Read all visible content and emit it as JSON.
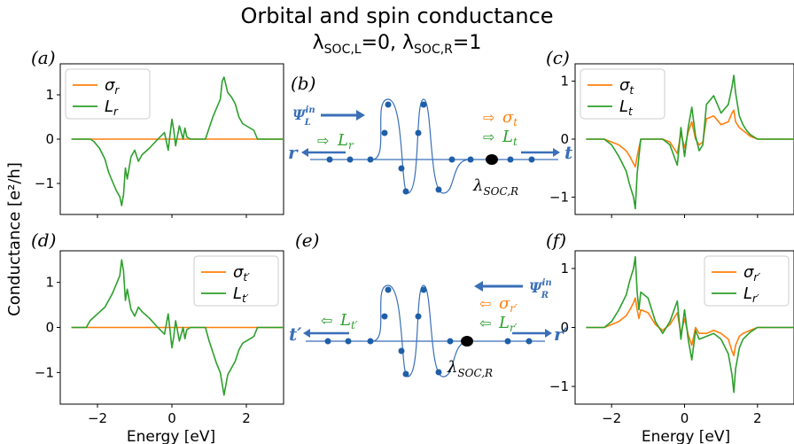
{
  "figure": {
    "title_line1": "Orbital and spin conductance",
    "title_line2": "λSOC,L=0, λSOC,R=1",
    "ylabel": "Conductance [e²/h]",
    "xlabel": "Energy [eV]"
  },
  "colors": {
    "sigma": "#ff7f0e",
    "L": "#2ca02c",
    "blue": "#3a6fb8",
    "green_text": "#2ca02c",
    "orange_text": "#ff7f0e"
  },
  "chart_data": [
    {
      "panel": "(a)",
      "type": "line",
      "xlim": [
        -3,
        3
      ],
      "ylim": [
        -1.7,
        1.7
      ],
      "yticks": [
        -1,
        0,
        1
      ],
      "xticks": [
        -2,
        0,
        2
      ],
      "show_xticklabels": false,
      "legend_position": "upper-left",
      "series": [
        {
          "name": "σr",
          "color_key": "sigma",
          "x": [
            -2.7,
            3.0
          ],
          "y": [
            0,
            0
          ]
        },
        {
          "name": "Lr",
          "color_key": "L",
          "x": [
            -2.7,
            -2.2,
            -2.1,
            -1.95,
            -1.8,
            -1.7,
            -1.6,
            -1.5,
            -1.4,
            -1.35,
            -1.3,
            -1.25,
            -1.2,
            -1.1,
            -1.0,
            -0.9,
            -0.8,
            -0.6,
            -0.4,
            -0.2,
            -0.1,
            0.0,
            0.05,
            0.1,
            0.2,
            0.3,
            0.35,
            0.4,
            0.5,
            0.6,
            0.7,
            0.8,
            0.9,
            1.0,
            1.1,
            1.2,
            1.3,
            1.35,
            1.4,
            1.5,
            1.6,
            1.7,
            1.8,
            1.9,
            2.0,
            2.2,
            2.3,
            2.6,
            3.0
          ],
          "y": [
            0,
            0,
            -0.05,
            -0.2,
            -0.45,
            -0.75,
            -0.95,
            -1.15,
            -1.3,
            -1.5,
            -1.25,
            -0.65,
            -0.9,
            -0.4,
            -0.25,
            -0.5,
            -0.35,
            -0.2,
            -0.02,
            0.15,
            -0.25,
            0.45,
            0.2,
            -0.15,
            0.3,
            0.0,
            0.25,
            0.05,
            0.0,
            0.0,
            0.0,
            0.0,
            0.0,
            0.25,
            0.5,
            0.7,
            0.9,
            1.3,
            1.4,
            1.05,
            0.95,
            0.8,
            0.5,
            0.35,
            0.3,
            0.2,
            0.0,
            0,
            0
          ]
        }
      ]
    },
    {
      "panel": "(c)",
      "type": "line",
      "xlim": [
        -3,
        3
      ],
      "ylim": [
        -1.3,
        1.3
      ],
      "yticks": [
        -1,
        0,
        1
      ],
      "xticks": [
        -2,
        0,
        2
      ],
      "show_xticklabels": false,
      "legend_position": "upper-left",
      "series": [
        {
          "name": "σt",
          "color_key": "sigma",
          "x": [
            -2.7,
            -2.2,
            -2.0,
            -1.8,
            -1.6,
            -1.5,
            -1.4,
            -1.35,
            -1.3,
            -1.25,
            -1.2,
            -1.0,
            -0.8,
            -0.6,
            -0.4,
            -0.2,
            -0.1,
            0.0,
            0.1,
            0.2,
            0.3,
            0.4,
            0.5,
            0.6,
            0.8,
            1.0,
            1.2,
            1.3,
            1.35,
            1.4,
            1.5,
            1.6,
            1.7,
            1.8,
            2.0,
            2.2,
            3.0
          ],
          "y": [
            0,
            0,
            -0.05,
            -0.1,
            -0.2,
            -0.3,
            -0.42,
            -0.48,
            -0.3,
            -0.15,
            0,
            0,
            0,
            0,
            -0.05,
            -0.25,
            0.1,
            -0.15,
            0.12,
            0.3,
            0.0,
            -0.1,
            -0.05,
            0.35,
            0.4,
            0.25,
            0.3,
            0.45,
            0.5,
            0.3,
            0.2,
            0.15,
            0.1,
            0.05,
            0.0,
            0,
            0
          ]
        },
        {
          "name": "Lt",
          "color_key": "L",
          "x": [
            -2.7,
            -2.2,
            -2.0,
            -1.8,
            -1.6,
            -1.5,
            -1.4,
            -1.35,
            -1.3,
            -1.25,
            -1.2,
            -1.0,
            -0.8,
            -0.6,
            -0.4,
            -0.2,
            -0.1,
            0.0,
            0.1,
            0.2,
            0.3,
            0.4,
            0.5,
            0.6,
            0.8,
            1.0,
            1.2,
            1.3,
            1.35,
            1.4,
            1.5,
            1.6,
            1.7,
            1.8,
            2.0,
            2.2,
            3.0
          ],
          "y": [
            0,
            0,
            -0.1,
            -0.3,
            -0.55,
            -0.8,
            -1.0,
            -1.2,
            -0.6,
            -0.3,
            0,
            0,
            0,
            0,
            -0.1,
            -0.45,
            0.2,
            -0.3,
            0.2,
            0.55,
            0.05,
            -0.2,
            -0.1,
            0.6,
            0.75,
            0.45,
            0.6,
            0.9,
            1.1,
            0.8,
            0.4,
            0.25,
            0.15,
            0.08,
            0.0,
            0,
            0
          ]
        }
      ]
    },
    {
      "panel": "(d)",
      "type": "line",
      "xlim": [
        -3,
        3
      ],
      "ylim": [
        -1.7,
        1.7
      ],
      "yticks": [
        -1,
        0,
        1
      ],
      "xticks": [
        -2,
        0,
        2
      ],
      "show_xticklabels": true,
      "legend_position": "upper-right",
      "series": [
        {
          "name": "σt′",
          "color_key": "sigma",
          "x": [
            -2.7,
            3.0
          ],
          "y": [
            0,
            0
          ]
        },
        {
          "name": "Lt′",
          "color_key": "L",
          "x": [
            -2.7,
            -2.3,
            -2.2,
            -2.0,
            -1.8,
            -1.6,
            -1.5,
            -1.4,
            -1.35,
            -1.3,
            -1.25,
            -1.2,
            -1.1,
            -1.0,
            -0.9,
            -0.8,
            -0.6,
            -0.4,
            -0.2,
            -0.1,
            0.0,
            0.05,
            0.1,
            0.2,
            0.3,
            0.35,
            0.4,
            0.5,
            0.7,
            0.9,
            1.0,
            1.1,
            1.2,
            1.3,
            1.35,
            1.4,
            1.5,
            1.6,
            1.7,
            1.8,
            1.9,
            2.0,
            2.2,
            2.3,
            2.6,
            3.0
          ],
          "y": [
            0,
            0,
            0.15,
            0.3,
            0.45,
            0.75,
            0.95,
            1.15,
            1.5,
            1.25,
            0.6,
            0.85,
            0.4,
            0.25,
            0.45,
            0.35,
            0.2,
            0.02,
            -0.15,
            0.3,
            -0.45,
            -0.2,
            0.15,
            -0.3,
            0.0,
            -0.25,
            -0.05,
            0,
            0,
            0,
            -0.3,
            -0.55,
            -0.8,
            -1.0,
            -1.25,
            -1.5,
            -1.05,
            -0.9,
            -0.75,
            -0.5,
            -0.35,
            -0.3,
            -0.2,
            0,
            0,
            0
          ]
        }
      ]
    },
    {
      "panel": "(f)",
      "type": "line",
      "xlim": [
        -3,
        3
      ],
      "ylim": [
        -1.3,
        1.3
      ],
      "yticks": [
        -1,
        0,
        1
      ],
      "xticks": [
        -2,
        0,
        2
      ],
      "show_xticklabels": true,
      "legend_position": "upper-right",
      "series": [
        {
          "name": "σr′",
          "color_key": "sigma",
          "x": [
            -2.7,
            -2.2,
            -2.0,
            -1.8,
            -1.6,
            -1.5,
            -1.4,
            -1.35,
            -1.3,
            -1.25,
            -1.2,
            -1.0,
            -0.8,
            -0.6,
            -0.4,
            -0.2,
            -0.1,
            0.0,
            0.1,
            0.2,
            0.3,
            0.4,
            0.6,
            0.8,
            1.0,
            1.2,
            1.3,
            1.35,
            1.4,
            1.5,
            1.6,
            1.8,
            2.0,
            2.2,
            3.0
          ],
          "y": [
            0,
            0,
            0.05,
            0.1,
            0.2,
            0.3,
            0.42,
            0.5,
            0.3,
            0.15,
            0.3,
            0.25,
            0.05,
            -0.05,
            0.05,
            0.25,
            -0.1,
            0.15,
            -0.12,
            -0.3,
            0.0,
            -0.1,
            -0.1,
            -0.05,
            -0.1,
            -0.2,
            -0.4,
            -0.48,
            -0.3,
            -0.15,
            -0.1,
            -0.05,
            0.0,
            0,
            0
          ]
        },
        {
          "name": "Lr′",
          "color_key": "L",
          "x": [
            -2.7,
            -2.2,
            -2.0,
            -1.8,
            -1.6,
            -1.5,
            -1.4,
            -1.35,
            -1.3,
            -1.25,
            -1.2,
            -1.0,
            -0.8,
            -0.6,
            -0.4,
            -0.2,
            -0.1,
            0.0,
            0.1,
            0.2,
            0.3,
            0.4,
            0.6,
            0.8,
            1.0,
            1.2,
            1.3,
            1.35,
            1.4,
            1.5,
            1.6,
            1.8,
            2.0,
            2.2,
            3.0
          ],
          "y": [
            0,
            0,
            0.1,
            0.3,
            0.55,
            0.8,
            1.0,
            1.2,
            0.6,
            0.3,
            0.6,
            0.5,
            0.1,
            -0.1,
            0.1,
            0.45,
            -0.2,
            0.3,
            -0.2,
            -0.55,
            -0.05,
            -0.2,
            -0.15,
            -0.1,
            -0.2,
            -0.45,
            -0.8,
            -1.1,
            -0.7,
            -0.35,
            -0.2,
            -0.08,
            0.0,
            0,
            0
          ]
        }
      ]
    }
  ],
  "panel_labels": {
    "a": "(a)",
    "b": "(b)",
    "c": "(c)",
    "d": "(d)",
    "e": "(e)",
    "f": "(f)"
  },
  "diagram_b": {
    "psi": "Ψ",
    "psi_sup": "in",
    "psi_sub": "L",
    "sigma_t": "σt",
    "L_t": "Lt",
    "L_r": "Lr",
    "left_end": "r",
    "right_end": "t",
    "soc": "λSOC,R"
  },
  "diagram_e": {
    "psi": "Ψ",
    "psi_sup": "in",
    "psi_sub": "R",
    "sigma_r": "σr′",
    "L_r": "Lr′",
    "L_t": "Lt′",
    "left_end": "t′",
    "right_end": "r′",
    "soc": "λSOC,R"
  }
}
